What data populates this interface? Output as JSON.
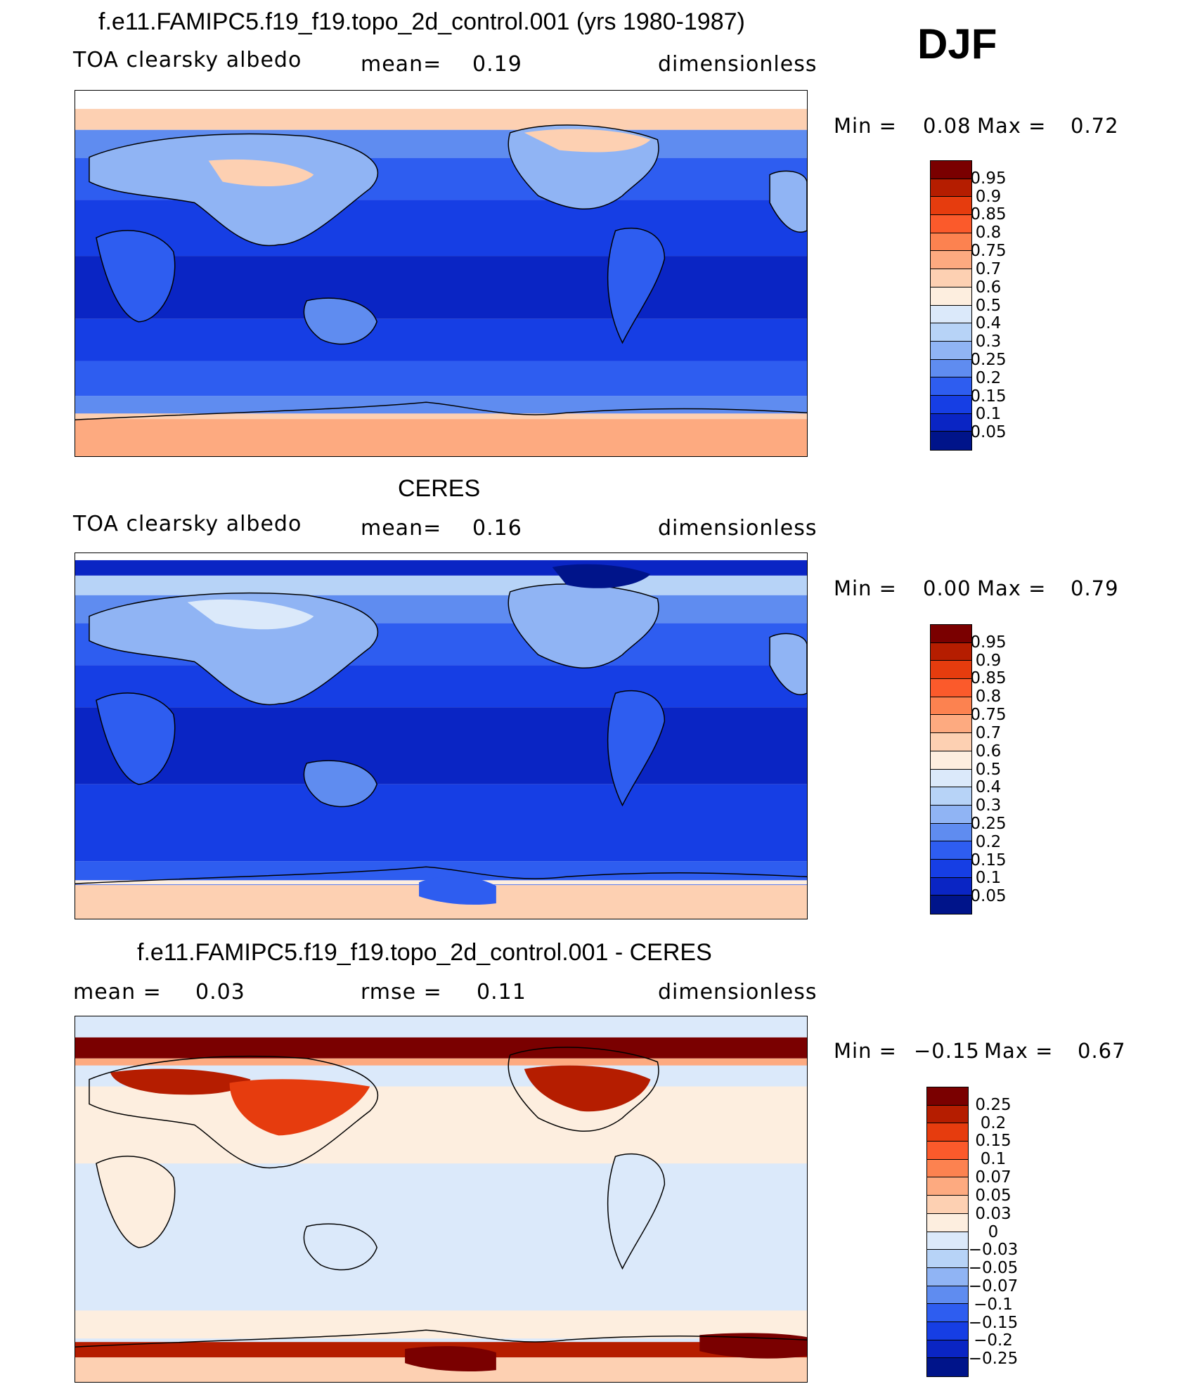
{
  "season": "DJF",
  "panels": [
    {
      "title": "f.e11.FAMIPC5.f19_f19.topo_2d_control.001 (yrs 1980-1987)",
      "left_label": "TOA clearsky albedo",
      "mid_label": "mean=",
      "mid_value": "0.19",
      "right_label": "dimensionless",
      "min_label": "Min =",
      "min_value": "0.08",
      "max_label": "Max =",
      "max_value": "0.72",
      "colorbar": {
        "colors": [
          "#7a0000",
          "#b51d00",
          "#e63c0e",
          "#fb5a2b",
          "#fc8250",
          "#fdaa80",
          "#fdd0b2",
          "#fdeedf",
          "#dbe9fa",
          "#b7d3f7",
          "#90b4f4",
          "#5f8cf0",
          "#2e5df0",
          "#163ee4",
          "#0a25c4",
          "#00148a"
        ],
        "labels": [
          "0.95",
          "0.9",
          "0.85",
          "0.8",
          "0.75",
          "0.7",
          "0.6",
          "0.5",
          "0.4",
          "0.3",
          "0.25",
          "0.2",
          "0.15",
          "0.1",
          "0.05"
        ]
      }
    },
    {
      "title": "CERES",
      "left_label": "TOA clearsky albedo",
      "mid_label": "mean=",
      "mid_value": "0.16",
      "right_label": "dimensionless",
      "min_label": "Min =",
      "min_value": "0.00",
      "max_label": "Max =",
      "max_value": "0.79",
      "colorbar": {
        "colors": [
          "#7a0000",
          "#b51d00",
          "#e63c0e",
          "#fb5a2b",
          "#fc8250",
          "#fdaa80",
          "#fdd0b2",
          "#fdeedf",
          "#dbe9fa",
          "#b7d3f7",
          "#90b4f4",
          "#5f8cf0",
          "#2e5df0",
          "#163ee4",
          "#0a25c4",
          "#00148a"
        ],
        "labels": [
          "0.95",
          "0.9",
          "0.85",
          "0.8",
          "0.75",
          "0.7",
          "0.6",
          "0.5",
          "0.4",
          "0.3",
          "0.25",
          "0.2",
          "0.15",
          "0.1",
          "0.05"
        ]
      }
    },
    {
      "title": "f.e11.FAMIPC5.f19_f19.topo_2d_control.001 - CERES",
      "left_label": "mean =",
      "left_value": "0.03",
      "mid_label": "rmse =",
      "mid_value": "0.11",
      "right_label": "dimensionless",
      "min_label": "Min =",
      "min_value": "−0.15",
      "max_label": "Max =",
      "max_value": "0.67",
      "colorbar": {
        "colors": [
          "#7a0000",
          "#b51d00",
          "#e63c0e",
          "#fb5a2b",
          "#fc8250",
          "#fdaa80",
          "#fdd0b2",
          "#fdeedf",
          "#dbe9fa",
          "#b7d3f7",
          "#90b4f4",
          "#5f8cf0",
          "#2e5df0",
          "#163ee4",
          "#0a25c4",
          "#00148a"
        ],
        "labels": [
          "0.25",
          "0.2",
          "0.15",
          "0.1",
          "0.07",
          "0.05",
          "0.03",
          "0",
          "−0.03",
          "−0.05",
          "−0.07",
          "−0.1",
          "−0.15",
          "−0.2",
          "−0.25"
        ]
      }
    }
  ]
}
